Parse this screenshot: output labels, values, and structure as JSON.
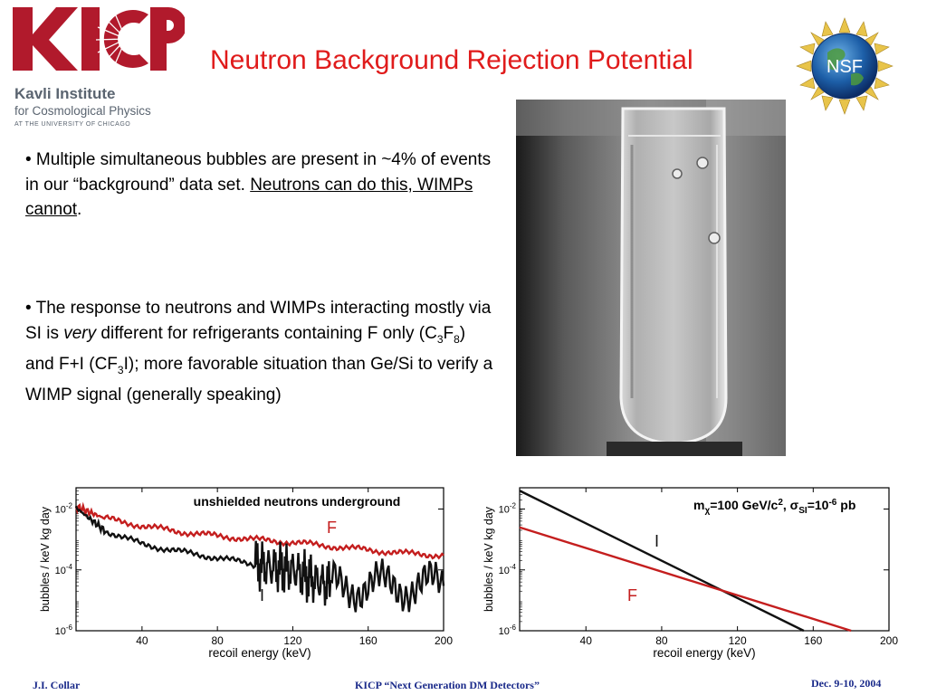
{
  "logo": {
    "brand": "KICP",
    "line1": "Kavli Institute",
    "line2": "for Cosmological Physics",
    "line3": "AT THE UNIVERSITY OF CHICAGO",
    "color": "#b11a2c"
  },
  "nsf_badge": {
    "text": "NSF"
  },
  "title": "Neutron Background Rejection Potential",
  "bullets": {
    "b1": {
      "prefix": "• Multiple simultaneous bubbles are present in ~4% of events in our “background” data set. ",
      "underlined": "Neutrons can do this, WIMPs cannot",
      "suffix": "."
    },
    "b2": {
      "p1": "• The response to neutrons and WIMPs interacting mostly via SI is ",
      "italic": "very",
      "p2": " different for refrigerants containing F only (C",
      "s1": "3",
      "p3": "F",
      "s2": "8",
      "p4": ") and F+I (CF",
      "s3": "3",
      "p5": "I); more favorable situation than Ge/Si to verify a WIMP signal (generally speaking)"
    }
  },
  "chart_data": [
    {
      "type": "line",
      "title": "unshielded neutrons underground",
      "xlabel": "recoil energy (keV)",
      "ylabel": "bubbles / keV kg day",
      "xlim": [
        5,
        200
      ],
      "ylim": [
        1e-06,
        0.05
      ],
      "yscale": "log",
      "xticks": [
        "40",
        "80",
        "120",
        "160",
        "200"
      ],
      "yticks": [
        "10-2",
        "10-4",
        "10-6"
      ],
      "series": [
        {
          "name": "F",
          "color": "#c41e1e",
          "x": [
            5,
            20,
            40,
            60,
            80,
            100,
            120,
            140,
            160,
            180,
            200
          ],
          "y": [
            0.012,
            0.005,
            0.0028,
            0.0018,
            0.0013,
            0.001,
            0.0008,
            0.0006,
            0.00045,
            0.00035,
            0.0003
          ]
        },
        {
          "name": "I",
          "color": "#111111",
          "x": [
            5,
            20,
            40,
            60,
            80,
            100,
            110,
            120,
            130,
            140,
            160,
            180,
            200
          ],
          "y": [
            0.011,
            0.002,
            0.0007,
            0.0004,
            0.00025,
            0.00015,
            0.00012,
            0.0001,
            5e-05,
            3e-05,
            3e-05,
            3e-05,
            3e-05
          ]
        }
      ]
    },
    {
      "type": "line",
      "title": "m_χ=100 GeV/c², σ_SI=10⁻⁶ pb",
      "title_parts": {
        "a": "m",
        "a_sub": "χ",
        "b": "=100 GeV/c",
        "b_sup": "2",
        "c": ", σ",
        "c_sub": "SI",
        "d": "=10",
        "d_sup": "-6",
        "e": " pb"
      },
      "xlabel": "recoil energy (keV)",
      "ylabel": "bubbles / keV kg day",
      "xlim": [
        5,
        200
      ],
      "ylim": [
        1e-06,
        0.05
      ],
      "yscale": "log",
      "xticks": [
        "40",
        "80",
        "120",
        "160",
        "200"
      ],
      "yticks": [
        "10-2",
        "10-4",
        "10-6"
      ],
      "series": [
        {
          "name": "I",
          "color": "#111111",
          "x": [
            5,
            155
          ],
          "y": [
            0.04,
            1e-06
          ]
        },
        {
          "name": "F",
          "color": "#c41e1e",
          "x": [
            5,
            180
          ],
          "y": [
            0.0025,
            1e-06
          ]
        }
      ]
    }
  ],
  "footer": {
    "left": "J.I. Collar",
    "center": "KICP “Next Generation DM Detectors”",
    "right": "Dec. 9-10, 2004"
  }
}
